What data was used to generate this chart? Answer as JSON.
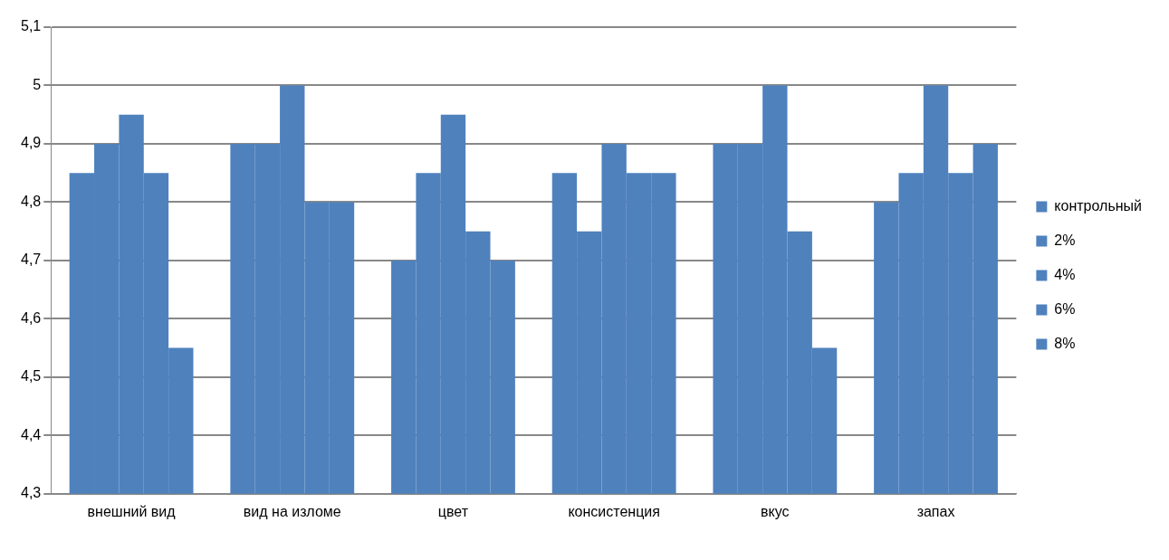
{
  "chart_data": {
    "type": "bar",
    "categories": [
      "внешний вид",
      "вид на изломе",
      "цвет",
      "консистенция",
      "вкус",
      "запах"
    ],
    "series": [
      {
        "name": "контрольный",
        "color": "#4f81bd",
        "values": [
          4.85,
          4.9,
          4.7,
          4.85,
          4.9,
          4.8
        ]
      },
      {
        "name": "2%",
        "color": "#4f81bd",
        "values": [
          4.9,
          4.9,
          4.85,
          4.75,
          4.9,
          4.85
        ]
      },
      {
        "name": "4%",
        "color": "#4f81bd",
        "values": [
          4.95,
          5.0,
          4.95,
          4.9,
          5.0,
          5.0
        ]
      },
      {
        "name": "6%",
        "color": "#4f81bd",
        "values": [
          4.85,
          4.8,
          4.75,
          4.85,
          4.75,
          4.85
        ]
      },
      {
        "name": "8%",
        "color": "#4f81bd",
        "values": [
          4.55,
          4.8,
          4.7,
          4.85,
          4.55,
          4.9
        ]
      }
    ],
    "ylim": [
      4.3,
      5.1
    ],
    "yticks": [
      {
        "value": 4.3,
        "label": "4,3"
      },
      {
        "value": 4.4,
        "label": "4,4"
      },
      {
        "value": 4.5,
        "label": "4,5"
      },
      {
        "value": 4.6,
        "label": "4,6"
      },
      {
        "value": 4.7,
        "label": "4,7"
      },
      {
        "value": 4.8,
        "label": "4,8"
      },
      {
        "value": 4.9,
        "label": "4,9"
      },
      {
        "value": 5,
        "label": "5"
      },
      {
        "value": 5.1,
        "label": "5,1"
      }
    ],
    "grid": "y",
    "legend": "right"
  }
}
